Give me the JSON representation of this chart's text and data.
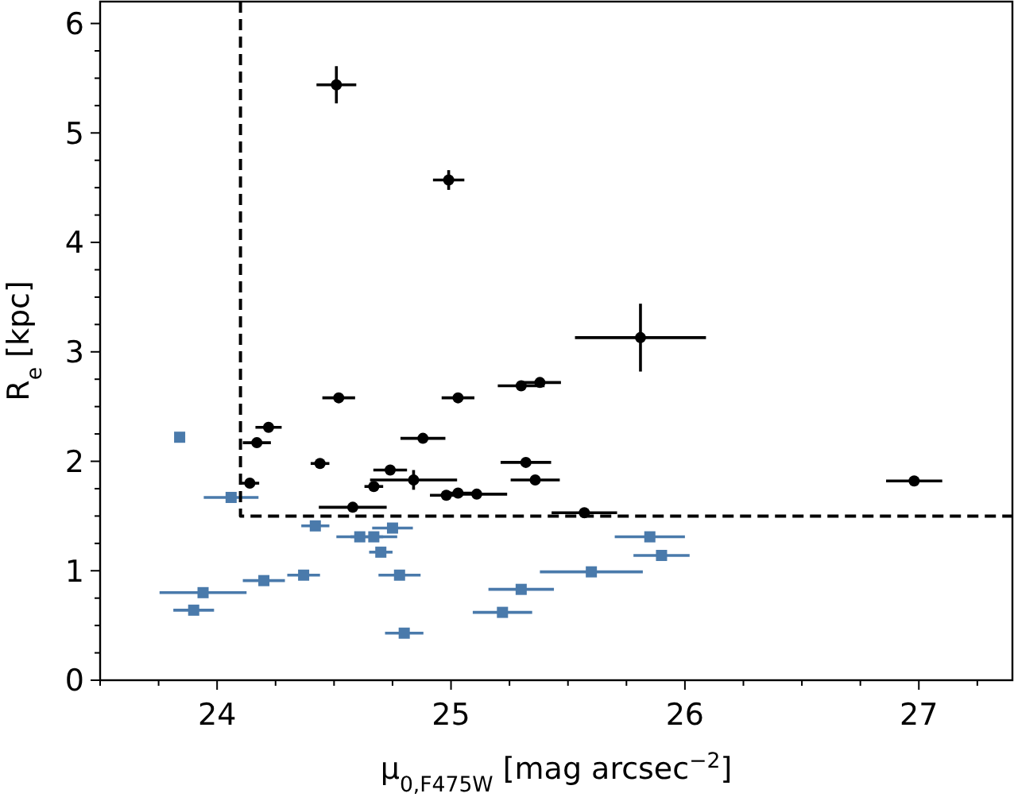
{
  "chart_data": {
    "type": "scatter",
    "xlabel": "μ$_{0,F475W}$ [mag arcsec$^{−2}$]",
    "ylabel": "R$_{e}$ [kpc]",
    "xlim": [
      23.5,
      27.4
    ],
    "ylim": [
      0,
      6.2
    ],
    "xticks": [
      {
        "value": 23.5,
        "label": null
      },
      {
        "value": 23.75,
        "label": null
      },
      24,
      {
        "value": 24.25,
        "label": null
      },
      {
        "value": 24.5,
        "label": null
      },
      {
        "value": 24.75,
        "label": null
      },
      25,
      {
        "value": 25.25,
        "label": null
      },
      {
        "value": 25.5,
        "label": null
      },
      {
        "value": 25.75,
        "label": null
      },
      26,
      {
        "value": 26.25,
        "label": null
      },
      {
        "value": 26.5,
        "label": null
      },
      {
        "value": 26.75,
        "label": null
      },
      27,
      {
        "value": 27.25,
        "label": null
      }
    ],
    "yticks": [
      0,
      {
        "value": 0.25,
        "label": null
      },
      {
        "value": 0.5,
        "label": null
      },
      {
        "value": 0.75,
        "label": null
      },
      1,
      {
        "value": 1.25,
        "label": null
      },
      {
        "value": 1.5,
        "label": null
      },
      {
        "value": 1.75,
        "label": null
      },
      2,
      {
        "value": 2.25,
        "label": null
      },
      {
        "value": 2.5,
        "label": null
      },
      {
        "value": 2.75,
        "label": null
      },
      3,
      {
        "value": 3.25,
        "label": null
      },
      {
        "value": 3.5,
        "label": null
      },
      {
        "value": 3.75,
        "label": null
      },
      4,
      {
        "value": 4.25,
        "label": null
      },
      {
        "value": 4.5,
        "label": null
      },
      {
        "value": 4.75,
        "label": null
      },
      5,
      {
        "value": 5.25,
        "label": null
      },
      {
        "value": 5.5,
        "label": null
      },
      {
        "value": 5.75,
        "label": null
      },
      6
    ],
    "grid": false,
    "series": [
      {
        "color": "#000000",
        "marker": "circle",
        "x": [
          24.51,
          24.99,
          24.52,
          25.03,
          25.3,
          25.38,
          24.22,
          24.17,
          24.88,
          24.44,
          25.32,
          25.36,
          24.74,
          24.84,
          24.14,
          24.67,
          24.98,
          25.03,
          25.11,
          24.58,
          25.81,
          26.98,
          25.57
        ],
        "values": [
          5.44,
          4.57,
          2.58,
          2.58,
          2.69,
          2.72,
          2.31,
          2.17,
          2.21,
          1.98,
          1.99,
          1.83,
          1.92,
          1.83,
          1.8,
          1.77,
          1.69,
          1.71,
          1.7,
          1.58,
          3.13,
          1.82,
          1.53
        ],
        "xerrors": [
          0.085,
          0.067,
          0.07,
          0.07,
          0.1,
          0.09,
          0.056,
          0.06,
          0.096,
          0.04,
          0.108,
          0.105,
          0.072,
          0.186,
          0.04,
          0.04,
          0.07,
          0.06,
          0.13,
          0.145,
          0.28,
          0.12,
          0.14
        ],
        "errors": [
          0.17,
          0.09,
          null,
          null,
          null,
          null,
          null,
          null,
          null,
          null,
          null,
          null,
          null,
          0.09,
          null,
          null,
          null,
          null,
          null,
          null,
          0.31,
          null,
          null
        ]
      },
      {
        "color": "#4a7aab",
        "marker": "square",
        "x": [
          23.84,
          24.06,
          24.42,
          24.75,
          24.61,
          24.67,
          24.7,
          24.37,
          24.2,
          24.78,
          23.94,
          23.9,
          24.8,
          25.3,
          25.22,
          25.85,
          25.9,
          25.6
        ],
        "values": [
          2.22,
          1.67,
          1.41,
          1.39,
          1.31,
          1.31,
          1.17,
          0.96,
          0.91,
          0.96,
          0.8,
          0.64,
          0.43,
          0.83,
          0.62,
          1.31,
          1.14,
          0.99
        ],
        "xerrors": [
          null,
          0.117,
          0.06,
          0.087,
          0.1,
          0.1,
          0.05,
          0.07,
          0.09,
          0.09,
          0.186,
          0.087,
          0.082,
          0.14,
          0.127,
          0.15,
          0.12,
          0.22
        ]
      },
      {
        "type": "line",
        "color": "#000000",
        "marker": "none",
        "line_style": "dashed",
        "x": [
          24.1,
          24.1,
          27.4
        ],
        "values": [
          6.2,
          1.5,
          1.5
        ]
      }
    ]
  }
}
